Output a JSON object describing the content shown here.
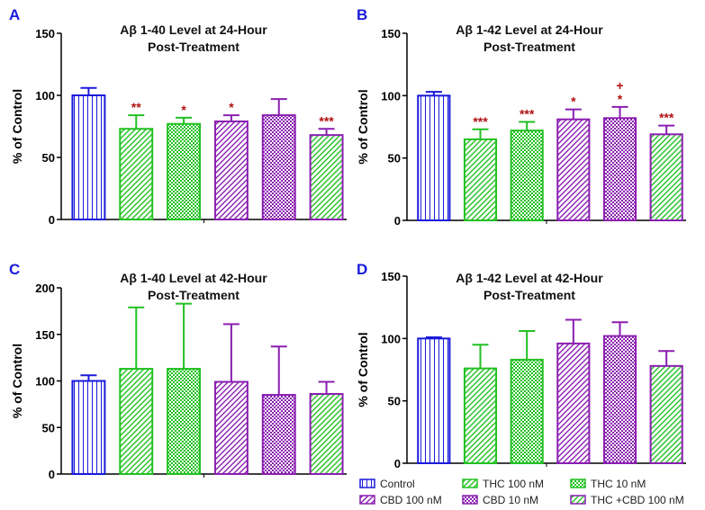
{
  "legend": [
    {
      "label": "Control",
      "pattern": "vlines",
      "fill": "#1a1adb",
      "stroke": "#1a1adb"
    },
    {
      "label": "THC 100 nM",
      "pattern": "diag",
      "fill": "#22c022",
      "stroke": "#22c022"
    },
    {
      "label": "THC 10 nM",
      "pattern": "check",
      "fill": "#22c022",
      "stroke": "#22c022"
    },
    {
      "label": "CBD 100 nM",
      "pattern": "diag",
      "fill": "#8a1fb0",
      "stroke": "#8a1fb0"
    },
    {
      "label": "CBD 10 nM",
      "pattern": "check",
      "fill": "#8a1fb0",
      "stroke": "#8a1fb0"
    },
    {
      "label": "THC +CBD 100 nM",
      "pattern": "diag",
      "fill": "#22c022",
      "stroke": "#8a1fb0"
    }
  ],
  "chart_data": [
    {
      "panel": "A",
      "type": "bar",
      "title": [
        "Aβ 1-40 Level at 24-Hour",
        "Post-Treatment"
      ],
      "ylabel": "% of Control",
      "ylim": [
        0,
        150
      ],
      "yticks": [
        0,
        50,
        100,
        150
      ],
      "values": [
        100,
        73,
        77,
        79,
        84,
        68
      ],
      "errors": [
        6,
        11,
        5,
        5,
        13,
        5
      ],
      "annotations": [
        "",
        "**",
        "*",
        "*",
        "",
        "***"
      ]
    },
    {
      "panel": "B",
      "type": "bar",
      "title": [
        "Aβ 1-42 Level at 24-Hour",
        "Post-Treatment"
      ],
      "ylabel": "% of Control",
      "ylim": [
        0,
        150
      ],
      "yticks": [
        0,
        50,
        100,
        150
      ],
      "values": [
        100,
        65,
        72,
        81,
        82,
        69
      ],
      "errors": [
        3,
        8,
        7,
        8,
        9,
        7
      ],
      "annotations": [
        "",
        "***",
        "***",
        "*",
        "+\n*",
        "***"
      ]
    },
    {
      "panel": "C",
      "type": "bar",
      "title": [
        "Aβ 1-40 Level at 42-Hour",
        "Post-Treatment"
      ],
      "ylabel": "% of Control",
      "ylim": [
        0,
        200
      ],
      "yticks": [
        0,
        50,
        100,
        150,
        200
      ],
      "values": [
        100,
        113,
        113,
        99,
        85,
        86
      ],
      "errors": [
        6,
        66,
        70,
        62,
        52,
        13
      ],
      "annotations": [
        "",
        "",
        "",
        "",
        "",
        ""
      ]
    },
    {
      "panel": "D",
      "type": "bar",
      "title": [
        "Aβ 1-42 Level at 42-Hour",
        "Post-Treatment"
      ],
      "ylabel": "% of Control",
      "ylim": [
        0,
        150
      ],
      "yticks": [
        0,
        50,
        100,
        150
      ],
      "values": [
        100,
        76,
        83,
        96,
        102,
        78
      ],
      "errors": [
        1,
        19,
        23,
        19,
        11,
        12
      ],
      "annotations": [
        "",
        "",
        "",
        "",
        "",
        ""
      ]
    }
  ]
}
